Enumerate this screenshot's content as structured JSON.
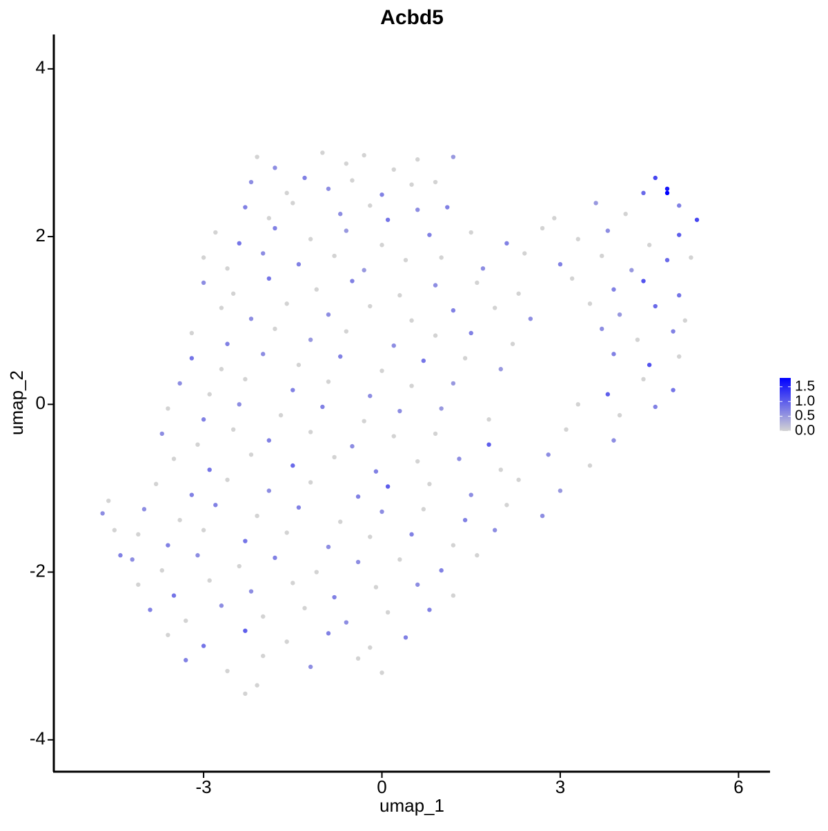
{
  "chart_data": {
    "type": "scatter",
    "title": "Acbd5",
    "x_label": "umap_1",
    "y_label": "umap_2",
    "xlim": [
      -5.52,
      6.53
    ],
    "ylim": [
      -4.38,
      4.41
    ],
    "xticks": [
      -3,
      0,
      3,
      6
    ],
    "yticks": [
      -4,
      -2,
      0,
      2,
      4
    ],
    "low_color": "#d3d3d3",
    "high_color": "#0000ff",
    "color_lim": [
      0,
      1.8
    ],
    "color_ticks": [
      {
        "value": 0,
        "label": "0.0"
      },
      {
        "value": 0.5,
        "label": "0.5"
      },
      {
        "value": 1,
        "label": "1.0"
      },
      {
        "value": 1.5,
        "label": "1.5"
      }
    ],
    "x": [
      -2.1,
      -1.8,
      -1.0,
      -0.6,
      -0.3,
      0.2,
      0.6,
      1.2,
      -2.2,
      -1.6,
      -1.3,
      -0.9,
      -0.5,
      0,
      0.5,
      0.9,
      4.4,
      4.6,
      4.8,
      -2.3,
      -1.9,
      -1.5,
      -0.7,
      -0.2,
      0.1,
      0.6,
      1.1,
      2.9,
      3.6,
      4.1,
      5.0,
      5.3,
      -2.8,
      -2.4,
      -1.8,
      -1.2,
      -0.6,
      0,
      0.8,
      1.5,
      2.1,
      2.7,
      3.3,
      3.8,
      4.5,
      5.0,
      -3.0,
      -2.6,
      -2.0,
      -1.4,
      -0.8,
      -0.3,
      0.4,
      1.0,
      1.7,
      2.4,
      3.0,
      3.7,
      4.2,
      4.8,
      5.2,
      -3.0,
      -2.5,
      -1.9,
      -1.1,
      -0.5,
      0.3,
      0.9,
      1.6,
      2.3,
      3.2,
      3.9,
      4.4,
      5.0,
      -2.7,
      -2.2,
      -1.6,
      -0.9,
      -0.2,
      0.5,
      1.2,
      1.9,
      2.5,
      3.5,
      4.0,
      4.6,
      5.1,
      -3.2,
      -2.6,
      -1.8,
      -1.2,
      -0.6,
      0.2,
      0.9,
      1.5,
      2.2,
      3.7,
      4.3,
      4.9,
      -3.2,
      -2.7,
      -2.0,
      -1.4,
      -0.7,
      0,
      0.7,
      1.4,
      2.0,
      3.9,
      4.5,
      5.0,
      -3.4,
      -2.9,
      -2.3,
      -1.5,
      -0.9,
      -0.2,
      0.5,
      1.2,
      3.8,
      4.4,
      4.9,
      -3.6,
      -3.0,
      -2.4,
      -1.7,
      -1.0,
      -0.3,
      0.3,
      1.0,
      1.8,
      3.3,
      4.0,
      4.6,
      -3.7,
      -3.1,
      -2.5,
      -1.9,
      -1.2,
      -0.5,
      0.2,
      0.9,
      1.8,
      3.1,
      3.9,
      -3.5,
      -2.9,
      -2.2,
      -1.5,
      -0.8,
      -0.1,
      0.6,
      1.3,
      2.0,
      2.8,
      3.5,
      -3.8,
      -3.2,
      -2.6,
      -1.9,
      -1.2,
      -0.4,
      0.1,
      0.8,
      1.5,
      2.3,
      3.0,
      -4.0,
      -3.4,
      -2.8,
      -2.1,
      -1.4,
      -0.7,
      0,
      0.7,
      1.4,
      2.1,
      2.7,
      -4.1,
      -3.6,
      -3.0,
      -2.3,
      -1.6,
      -0.9,
      -0.2,
      0.5,
      1.2,
      1.9,
      -4.2,
      -3.7,
      -3.1,
      -2.4,
      -1.8,
      -1.1,
      -0.4,
      0.3,
      1.0,
      1.6,
      -4.1,
      -3.5,
      -2.9,
      -2.2,
      -1.5,
      -0.8,
      -0.1,
      0.6,
      1.2,
      -3.9,
      -3.3,
      -2.7,
      -2.0,
      -1.3,
      -0.6,
      0.1,
      0.8,
      -3.6,
      -3.0,
      -2.3,
      -1.6,
      -0.9,
      -0.2,
      0.4,
      -3.3,
      -2.6,
      -2.0,
      -1.2,
      -0.4,
      0,
      -2.3,
      -2.1,
      -4.7,
      -4.6,
      -4.5,
      -4.4,
      4.8
    ],
    "y": [
      2.95,
      2.82,
      3.0,
      2.87,
      2.97,
      2.8,
      2.92,
      2.95,
      2.65,
      2.52,
      2.7,
      2.57,
      2.67,
      2.5,
      2.62,
      2.65,
      2.52,
      2.7,
      2.57,
      2.35,
      2.22,
      2.4,
      2.27,
      2.37,
      2.2,
      2.32,
      2.35,
      2.22,
      2.4,
      2.27,
      2.37,
      2.2,
      2.05,
      1.92,
      2.1,
      1.97,
      2.07,
      1.9,
      2.02,
      2.05,
      1.92,
      2.1,
      1.97,
      2.07,
      1.9,
      2.02,
      1.75,
      1.62,
      1.8,
      1.67,
      1.77,
      1.6,
      1.72,
      1.75,
      1.62,
      1.8,
      1.67,
      1.77,
      1.6,
      1.72,
      1.75,
      1.45,
      1.32,
      1.5,
      1.37,
      1.47,
      1.3,
      1.42,
      1.45,
      1.32,
      1.5,
      1.37,
      1.47,
      1.3,
      1.15,
      1.02,
      1.2,
      1.07,
      1.17,
      1.0,
      1.12,
      1.15,
      1.02,
      1.2,
      1.07,
      1.17,
      1.0,
      0.85,
      0.72,
      0.9,
      0.77,
      0.87,
      0.7,
      0.82,
      0.85,
      0.72,
      0.9,
      0.77,
      0.87,
      0.55,
      0.42,
      0.6,
      0.47,
      0.57,
      0.4,
      0.52,
      0.55,
      0.42,
      0.6,
      0.47,
      0.57,
      0.25,
      0.12,
      0.3,
      0.17,
      0.27,
      0.1,
      0.22,
      0.25,
      0.12,
      0.3,
      0.17,
      -0.05,
      -0.18,
      0,
      -0.13,
      -0.03,
      -0.2,
      -0.08,
      -0.05,
      -0.18,
      0,
      -0.13,
      -0.03,
      -0.35,
      -0.48,
      -0.3,
      -0.43,
      -0.33,
      -0.5,
      -0.38,
      -0.35,
      -0.48,
      -0.3,
      -0.43,
      -0.65,
      -0.78,
      -0.6,
      -0.73,
      -0.63,
      -0.8,
      -0.68,
      -0.65,
      -0.78,
      -0.6,
      -0.73,
      -0.95,
      -1.08,
      -0.9,
      -1.03,
      -0.93,
      -1.1,
      -0.98,
      -0.95,
      -1.08,
      -0.9,
      -1.03,
      -1.25,
      -1.38,
      -1.2,
      -1.33,
      -1.23,
      -1.4,
      -1.28,
      -1.25,
      -1.38,
      -1.2,
      -1.33,
      -1.55,
      -1.68,
      -1.5,
      -1.63,
      -1.53,
      -1.7,
      -1.58,
      -1.55,
      -1.68,
      -1.5,
      -1.85,
      -1.98,
      -1.8,
      -1.93,
      -1.83,
      -2.0,
      -1.88,
      -1.85,
      -1.98,
      -1.8,
      -2.15,
      -2.28,
      -2.1,
      -2.23,
      -2.13,
      -2.3,
      -2.18,
      -2.15,
      -2.28,
      -2.45,
      -2.58,
      -2.4,
      -2.53,
      -2.43,
      -2.6,
      -2.48,
      -2.45,
      -2.75,
      -2.88,
      -2.7,
      -2.83,
      -2.73,
      -2.9,
      -2.78,
      -3.05,
      -3.18,
      -3.0,
      -3.13,
      -3.03,
      -3.2,
      -3.45,
      -3.35,
      -1.3,
      -1.15,
      -1.5,
      -1.8,
      2.52
    ],
    "values": [
      0,
      0.6,
      0,
      0,
      0,
      0,
      0,
      0.5,
      0.6,
      0,
      0.7,
      0.6,
      0,
      0.7,
      0,
      0,
      0.9,
      1.2,
      1.6,
      0.7,
      0,
      0,
      0.6,
      0,
      0.8,
      0.6,
      0.7,
      0,
      0.5,
      0,
      0.7,
      1.2,
      0,
      0.8,
      0.7,
      0,
      0.5,
      0,
      0.7,
      0,
      0.7,
      0,
      0,
      0.6,
      0,
      1.0,
      0,
      0,
      0.6,
      0.7,
      0,
      0.5,
      0,
      0,
      0.6,
      0,
      0.7,
      0,
      0.5,
      0.9,
      0,
      0.6,
      0,
      0.8,
      0,
      0.7,
      0,
      0.6,
      0,
      0,
      0,
      0.7,
      1.1,
      0.8,
      0,
      0.6,
      0,
      0.6,
      0,
      0,
      0.7,
      0,
      0.6,
      0,
      0.5,
      0.9,
      0,
      0,
      0.7,
      0,
      0.5,
      0,
      0.6,
      0,
      0.7,
      0,
      0.6,
      0,
      0.7,
      0.8,
      0,
      0.6,
      0,
      0.7,
      0,
      0.8,
      0,
      0.5,
      0.7,
      1.1,
      0,
      0.6,
      0,
      0,
      0.7,
      0,
      0.6,
      0,
      0.5,
      1.0,
      0,
      0.8,
      0,
      0.7,
      0.6,
      0,
      0.7,
      0,
      0.6,
      0.5,
      0,
      0,
      0,
      0.7,
      0.6,
      0,
      0,
      0.7,
      0,
      0.6,
      0,
      0,
      1.0,
      0,
      0.6,
      0,
      0.8,
      0,
      0.9,
      0,
      0.7,
      0,
      0.6,
      0,
      0.6,
      0,
      0,
      0.7,
      0,
      0.6,
      0,
      0.7,
      1.0,
      0,
      0.6,
      0,
      0.5,
      0.6,
      0,
      0.7,
      0,
      0.7,
      0,
      0.6,
      0,
      0.7,
      0,
      0.6,
      0,
      0.7,
      0,
      0.8,
      0,
      0.6,
      0,
      0.7,
      0,
      0.6,
      0.6,
      0,
      0.6,
      0,
      0.7,
      0,
      0.6,
      0,
      0.7,
      0,
      0,
      0.8,
      0,
      0.6,
      0,
      0.7,
      0,
      0.6,
      0,
      0.7,
      0,
      0.6,
      0,
      0,
      0.6,
      0,
      0.7,
      0,
      0.8,
      1.0,
      0,
      0.7,
      0,
      0.7,
      0.7,
      0,
      0,
      0.6,
      0,
      0,
      0,
      0,
      0.6,
      0,
      0,
      0.7,
      1.8
    ]
  }
}
